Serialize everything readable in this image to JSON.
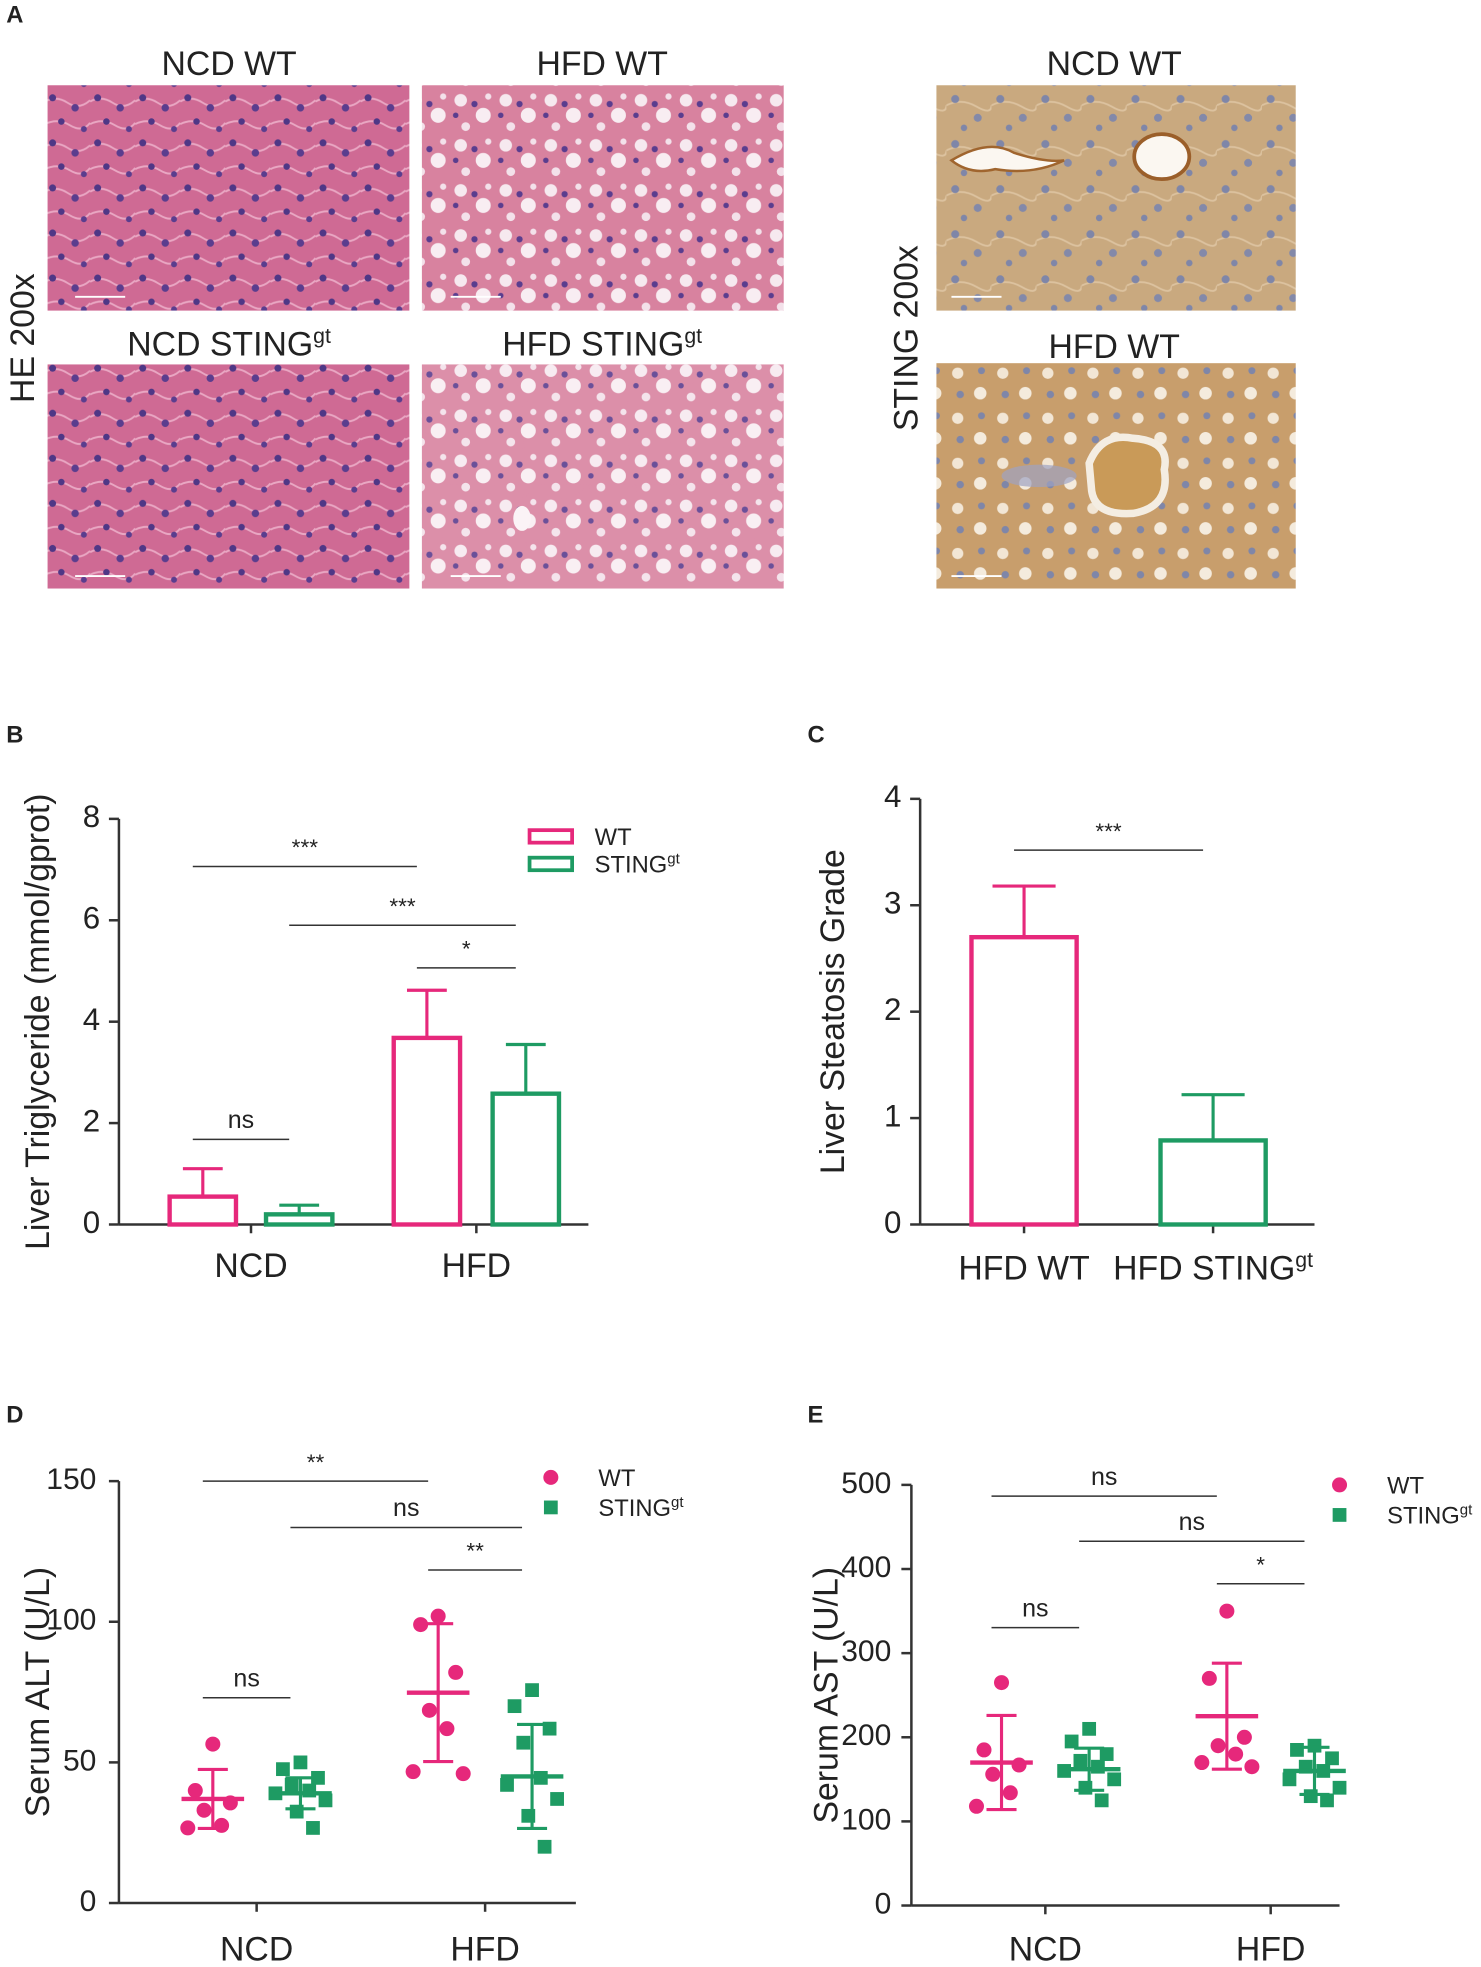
{
  "panel_a": {
    "label": "A",
    "side_labels": [
      "HE 200x",
      "STING 200x"
    ],
    "images": [
      {
        "title": "NCD WT"
      },
      {
        "title": "HFD WT"
      },
      {
        "title": "NCD STING",
        "sup": "gt"
      },
      {
        "title": "HFD STING",
        "sup": "gt"
      },
      {
        "title": "NCD WT"
      },
      {
        "title": "HFD WT"
      }
    ]
  },
  "chart_data": [
    {
      "panel_label": "B",
      "type": "bar",
      "ylabel": "Liver Triglyceride (mmol/gprot)",
      "categories": [
        "NCD",
        "HFD"
      ],
      "series": [
        {
          "name": "WT",
          "color": "#e6287b",
          "values": [
            0.55,
            3.68
          ],
          "errors": [
            0.55,
            0.94
          ]
        },
        {
          "name": "STING",
          "name_superscript": "gt",
          "color": "#1e9b63",
          "values": [
            0.2,
            2.58
          ],
          "errors": [
            0.18,
            0.97
          ]
        }
      ],
      "ylim": [
        0,
        8
      ],
      "yticks": [
        0,
        2,
        4,
        6,
        8
      ],
      "annotations": [
        {
          "text": "***",
          "from": [
            "WT",
            "NCD"
          ],
          "to": [
            "WT",
            "HFD"
          ]
        },
        {
          "text": "***",
          "from": [
            "STING",
            "NCD"
          ],
          "to": [
            "STING",
            "HFD"
          ]
        },
        {
          "text": "*",
          "from": [
            "WT",
            "HFD"
          ],
          "to": [
            "STING",
            "HFD"
          ]
        },
        {
          "text": "ns",
          "from": [
            "WT",
            "NCD"
          ],
          "to": [
            "STING",
            "NCD"
          ]
        }
      ]
    },
    {
      "panel_label": "C",
      "type": "bar",
      "ylabel": "Liver Steatosis Grade",
      "categories": [
        "HFD WT",
        "HFD STING"
      ],
      "category_superscripts": [
        null,
        "gt"
      ],
      "values": [
        2.7,
        0.79
      ],
      "errors": [
        0.48,
        0.43
      ],
      "colors": [
        "#e6287b",
        "#1e9b63"
      ],
      "ylim": [
        0,
        4
      ],
      "yticks": [
        0,
        1,
        2,
        3,
        4
      ],
      "annotations": [
        {
          "text": "***",
          "from": "HFD WT",
          "to": "HFD STING"
        }
      ]
    },
    {
      "panel_label": "D",
      "type": "dot",
      "ylabel": "Serum ALT (U/L)",
      "categories": [
        "NCD",
        "HFD"
      ],
      "series": [
        {
          "name": "WT",
          "color": "#e6287b",
          "marker": "circle",
          "values": [
            [
              56.5,
              40,
              35.6,
              33,
              27.6,
              26.7
            ],
            [
              102,
              99,
              82,
              68.5,
              62,
              46.7,
              46
            ]
          ],
          "means": [
            37,
            74.8
          ],
          "sds": [
            10.5,
            24.5
          ]
        },
        {
          "name": "STING",
          "name_superscript": "gt",
          "color": "#1e9b63",
          "marker": "square",
          "values": [
            [
              50,
              47.6,
              44.5,
              42,
              40,
              39,
              36.5,
              32.5,
              26.7
            ],
            [
              75.7,
              70,
              62,
              57,
              44.5,
              42,
              37,
              31,
              20
            ]
          ],
          "means": [
            39,
            45
          ],
          "sds": [
            5.5,
            18.5
          ]
        }
      ],
      "ylim": [
        0,
        150
      ],
      "yticks": [
        0,
        50,
        100,
        150
      ],
      "annotations": [
        {
          "text": "**",
          "from": [
            "WT",
            "NCD"
          ],
          "to": [
            "WT",
            "HFD"
          ]
        },
        {
          "text": "ns",
          "from": [
            "STING",
            "NCD"
          ],
          "to": [
            "STING",
            "HFD"
          ]
        },
        {
          "text": "**",
          "from": [
            "WT",
            "HFD"
          ],
          "to": [
            "STING",
            "HFD"
          ]
        },
        {
          "text": "ns",
          "from": [
            "WT",
            "NCD"
          ],
          "to": [
            "STING",
            "NCD"
          ]
        }
      ]
    },
    {
      "panel_label": "E",
      "type": "dot",
      "ylabel": "Serum AST (U/L)",
      "categories": [
        "NCD",
        "HFD"
      ],
      "series": [
        {
          "name": "WT",
          "color": "#e6287b",
          "marker": "circle",
          "values": [
            [
              265,
              185,
              167,
              156,
              134,
              118
            ],
            [
              350,
              270,
              200,
              190,
              180,
              170,
              165
            ]
          ],
          "means": [
            170,
            225
          ],
          "sds": [
            56,
            63
          ]
        },
        {
          "name": "STING",
          "name_superscript": "gt",
          "color": "#1e9b63",
          "marker": "square",
          "values": [
            [
              210,
              195,
              180,
              172,
              165,
              160,
              150,
              140,
              125
            ],
            [
              190,
              185,
              175,
              165,
              160,
              150,
              140,
              130,
              125
            ]
          ],
          "means": [
            162,
            160
          ],
          "sds": [
            25,
            28
          ]
        }
      ],
      "ylim": [
        0,
        500
      ],
      "yticks": [
        0,
        100,
        200,
        300,
        400,
        500
      ],
      "annotations": [
        {
          "text": "ns",
          "from": [
            "WT",
            "NCD"
          ],
          "to": [
            "WT",
            "HFD"
          ]
        },
        {
          "text": "ns",
          "from": [
            "STING",
            "NCD"
          ],
          "to": [
            "STING",
            "HFD"
          ]
        },
        {
          "text": "*",
          "from": [
            "WT",
            "HFD"
          ],
          "to": [
            "STING",
            "HFD"
          ]
        },
        {
          "text": "ns",
          "from": [
            "WT",
            "NCD"
          ],
          "to": [
            "STING",
            "NCD"
          ]
        }
      ]
    }
  ]
}
